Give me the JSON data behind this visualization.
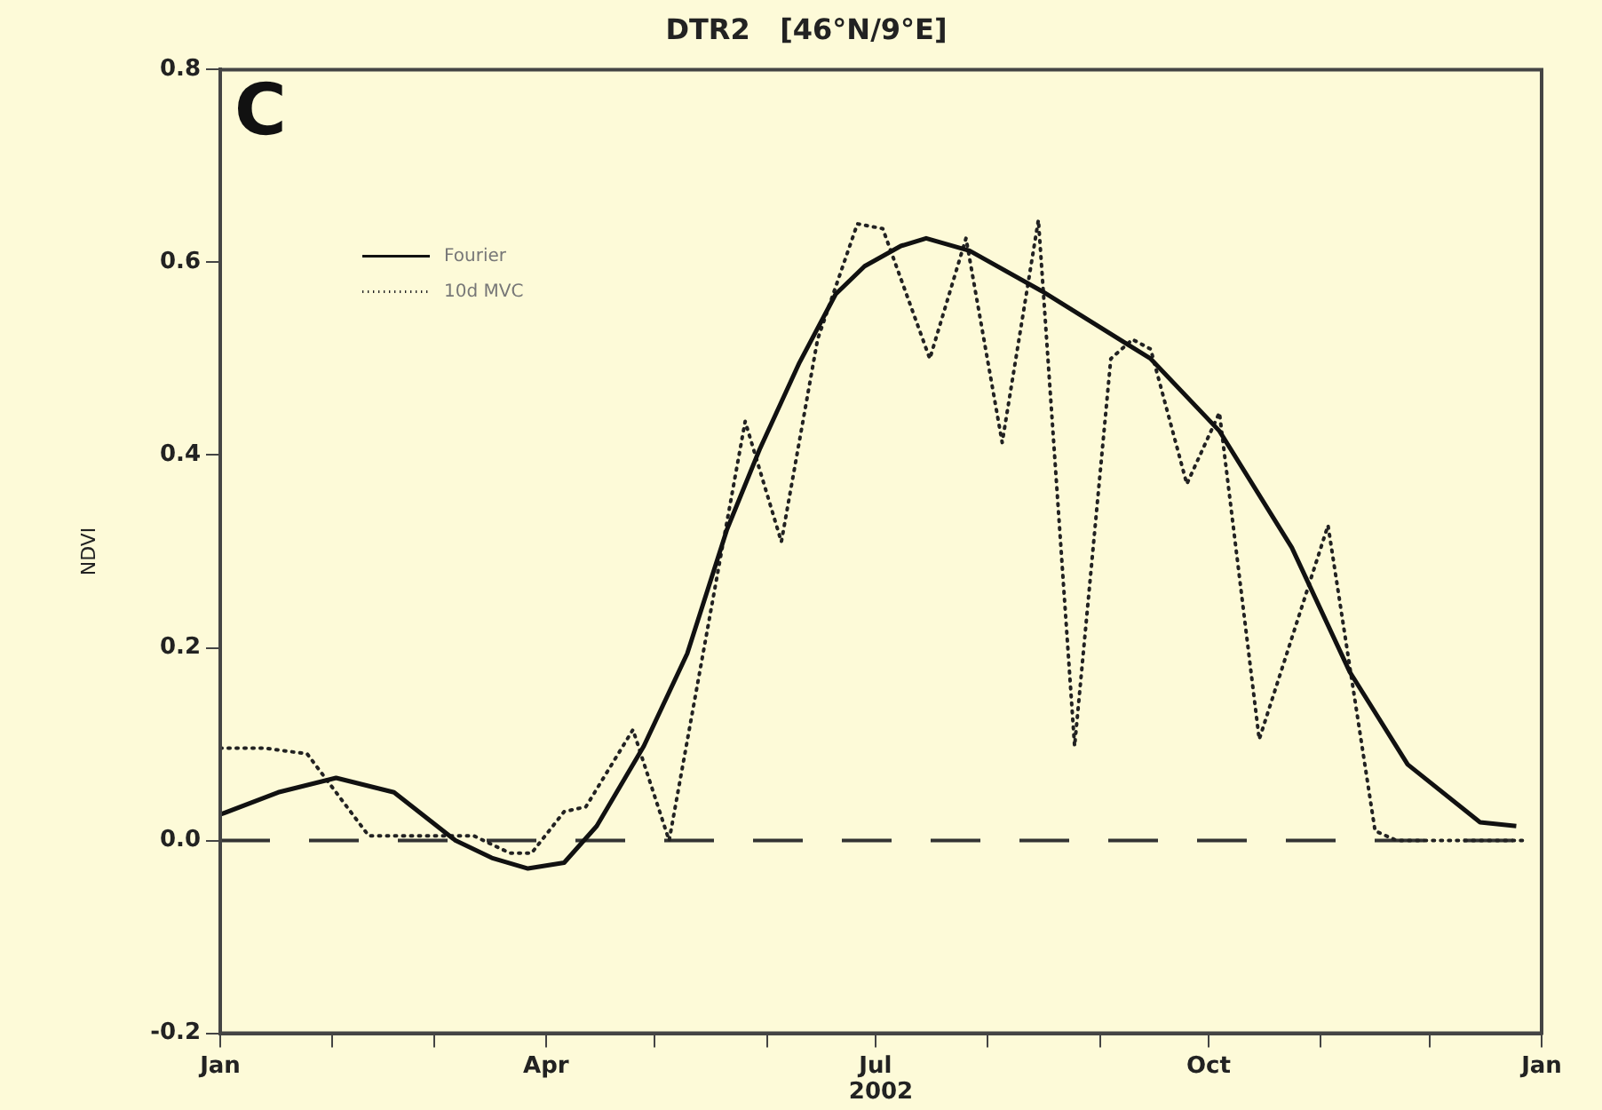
{
  "chart_data": {
    "type": "line",
    "title": "DTR2   [46°N/9°E]",
    "xlabel": "2002",
    "ylabel": "NDVI",
    "annotations": [
      "C"
    ],
    "xlim": [
      "2002-01-01",
      "2003-01-01"
    ],
    "xticks": [
      {
        "value": "2002-01-01",
        "label": "Jan"
      },
      {
        "value": "2002-02-01",
        "label": null
      },
      {
        "value": "2002-03-01",
        "label": null
      },
      {
        "value": "2002-04-01",
        "label": "Apr"
      },
      {
        "value": "2002-05-01",
        "label": null
      },
      {
        "value": "2002-06-01",
        "label": null
      },
      {
        "value": "2002-07-01",
        "label": "Jul"
      },
      {
        "value": "2002-08-01",
        "label": null
      },
      {
        "value": "2002-09-01",
        "label": null
      },
      {
        "value": "2002-10-01",
        "label": "Oct"
      },
      {
        "value": "2002-11-01",
        "label": null
      },
      {
        "value": "2002-12-01",
        "label": null
      },
      {
        "value": "2003-01-01",
        "label": "Jan"
      }
    ],
    "ylim": [
      -0.2,
      0.8
    ],
    "yticks": [
      {
        "value": -0.2,
        "label": "-0.2"
      },
      {
        "value": 0,
        "label": "0.0"
      },
      {
        "value": 0.2,
        "label": "0.2"
      },
      {
        "value": 0.4,
        "label": "0.4"
      },
      {
        "value": 0.6,
        "label": "0.6"
      },
      {
        "value": 0.8,
        "label": "0.8"
      }
    ],
    "grid": false,
    "legend": "top left",
    "marker": "none",
    "ref_lines": [
      {
        "axis": "y",
        "value": 0,
        "line_style": "dashed",
        "color": "#333333"
      }
    ],
    "series": [
      {
        "name": "Fourier",
        "color": "#111111",
        "line_style": "solid",
        "x": [
          "2002-01-01",
          "2002-01-17",
          "2002-02-02",
          "2002-02-18",
          "2002-03-07",
          "2002-03-17",
          "2002-03-27",
          "2002-04-06",
          "2002-04-15",
          "2002-04-28",
          "2002-05-10",
          "2002-05-21",
          "2002-05-30",
          "2002-06-10",
          "2002-06-20",
          "2002-06-28",
          "2002-07-08",
          "2002-07-15",
          "2002-07-27",
          "2002-08-16",
          "2002-09-15",
          "2002-10-04",
          "2002-10-24",
          "2002-11-09",
          "2002-11-25",
          "2002-12-15",
          "2002-12-25"
        ],
        "values": [
          0.027,
          0.05,
          0.065,
          0.05,
          0.0,
          -0.018,
          -0.029,
          -0.023,
          0.015,
          0.098,
          0.194,
          0.323,
          0.406,
          0.496,
          0.567,
          0.596,
          0.617,
          0.625,
          0.612,
          0.57,
          0.5,
          0.425,
          0.304,
          0.175,
          0.079,
          0.019,
          0.015
        ]
      },
      {
        "name": "10d MVC",
        "color": "#222222",
        "line_style": "dotted",
        "x": [
          "2002-01-01",
          "2002-01-13",
          "2002-01-25",
          "2002-02-11",
          "2002-02-25",
          "2002-03-12",
          "2002-03-22",
          "2002-03-28",
          "2002-04-06",
          "2002-04-12",
          "2002-04-25",
          "2002-05-05",
          "2002-05-26",
          "2002-06-05",
          "2002-06-15",
          "2002-06-26",
          "2002-07-03",
          "2002-07-16",
          "2002-07-26",
          "2002-08-05",
          "2002-08-15",
          "2002-08-25",
          "2002-09-04",
          "2002-09-10",
          "2002-09-15",
          "2002-09-25",
          "2002-10-04",
          "2002-10-15",
          "2002-11-03",
          "2002-11-16",
          "2002-11-22",
          "2002-12-12",
          "2002-12-27"
        ],
        "values": [
          0.096,
          0.096,
          0.09,
          0.005,
          0.005,
          0.005,
          -0.013,
          -0.013,
          0.03,
          0.035,
          0.115,
          0.0,
          0.435,
          0.31,
          0.52,
          0.64,
          0.635,
          0.5,
          0.625,
          0.413,
          0.644,
          0.098,
          0.5,
          0.52,
          0.51,
          0.37,
          0.444,
          0.105,
          0.327,
          0.01,
          0.0,
          0.0,
          0.0
        ]
      }
    ]
  }
}
